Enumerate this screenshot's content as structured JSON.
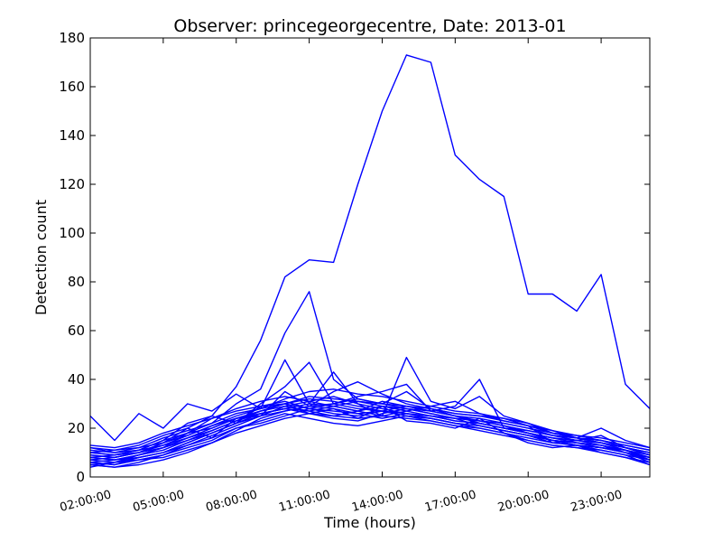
{
  "chart_data": {
    "type": "line",
    "title": "Observer: princegeorgecentre, Date: 2013-01",
    "xlabel": "Time (hours)",
    "ylabel": "Detection count",
    "x": [
      "02:00:00",
      "03:00:00",
      "04:00:00",
      "05:00:00",
      "06:00:00",
      "07:00:00",
      "08:00:00",
      "09:00:00",
      "10:00:00",
      "11:00:00",
      "12:00:00",
      "13:00:00",
      "14:00:00",
      "15:00:00",
      "16:00:00",
      "17:00:00",
      "18:00:00",
      "19:00:00",
      "20:00:00",
      "21:00:00",
      "22:00:00",
      "23:00:00",
      "00:00:00",
      "01:00:00"
    ],
    "x_tick_labels": [
      "02:00:00",
      "05:00:00",
      "08:00:00",
      "11:00:00",
      "14:00:00",
      "17:00:00",
      "20:00:00",
      "23:00:00"
    ],
    "y_ticks": [
      0,
      20,
      40,
      60,
      80,
      100,
      120,
      140,
      160,
      180
    ],
    "ylim": [
      0,
      180
    ],
    "grid": false,
    "line_color": "#0000ff",
    "series": [
      {
        "values": [
          9,
          8,
          10,
          14,
          20,
          25,
          37,
          56,
          82,
          89,
          88,
          120,
          150,
          173,
          170,
          132,
          122,
          115,
          75,
          75,
          68,
          83,
          38,
          28
        ]
      },
      {
        "values": [
          8,
          7,
          9,
          12,
          18,
          22,
          30,
          36,
          59,
          76,
          40,
          32,
          30,
          35,
          28,
          25,
          22,
          20,
          18,
          15,
          14,
          13,
          10,
          8
        ]
      },
      {
        "values": [
          25,
          15,
          26,
          20,
          30,
          27,
          34,
          28,
          48,
          30,
          43,
          30,
          25,
          49,
          31,
          28,
          33,
          25,
          22,
          18,
          16,
          20,
          15,
          12
        ]
      },
      {
        "values": [
          10,
          9,
          11,
          15,
          22,
          25,
          22,
          30,
          37,
          47,
          30,
          33,
          35,
          38,
          27,
          29,
          40,
          20,
          18,
          16,
          14,
          12,
          11,
          9
        ]
      },
      {
        "values": [
          6,
          5,
          8,
          10,
          14,
          18,
          22,
          29,
          30,
          26,
          28,
          24,
          29,
          23,
          22,
          20,
          24,
          18,
          14,
          12,
          13,
          10,
          8,
          6
        ]
      },
      {
        "values": [
          12,
          11,
          13,
          17,
          20,
          16,
          24,
          25,
          35,
          29,
          35,
          39,
          34,
          30,
          28,
          26,
          25,
          24,
          21,
          14,
          15,
          17,
          12,
          10
        ]
      },
      {
        "values": [
          5,
          4,
          6,
          9,
          12,
          15,
          20,
          22,
          25,
          28,
          27,
          26,
          27,
          25,
          24,
          22,
          20,
          18,
          15,
          13,
          12,
          11,
          9,
          7
        ]
      },
      {
        "values": [
          7,
          8,
          10,
          14,
          18,
          20,
          24,
          27,
          30,
          33,
          32,
          31,
          30,
          29,
          27,
          25,
          23,
          21,
          18,
          16,
          15,
          14,
          11,
          8
        ]
      },
      {
        "values": [
          4,
          6,
          7,
          8,
          11,
          14,
          19,
          24,
          27,
          29,
          30,
          28,
          27,
          26,
          25,
          24,
          21,
          19,
          17,
          14,
          13,
          12,
          10,
          6
        ]
      },
      {
        "values": [
          11,
          10,
          12,
          16,
          19,
          22,
          26,
          28,
          32,
          35,
          36,
          34,
          33,
          31,
          29,
          27,
          26,
          23,
          21,
          18,
          17,
          15,
          13,
          11
        ]
      },
      {
        "values": [
          8,
          9,
          11,
          15,
          18,
          24,
          28,
          31,
          33,
          31,
          29,
          27,
          25,
          27,
          29,
          31,
          26,
          24,
          22,
          19,
          16,
          14,
          12,
          9
        ]
      },
      {
        "values": [
          6,
          7,
          9,
          11,
          15,
          18,
          22,
          26,
          28,
          26,
          24,
          23,
          26,
          28,
          27,
          25,
          22,
          20,
          18,
          15,
          14,
          13,
          11,
          7
        ]
      },
      {
        "values": [
          13,
          12,
          14,
          18,
          21,
          24,
          27,
          29,
          31,
          28,
          30,
          32,
          30,
          28,
          26,
          24,
          23,
          21,
          19,
          17,
          15,
          14,
          12,
          10
        ]
      },
      {
        "values": [
          5,
          6,
          8,
          10,
          13,
          17,
          21,
          25,
          29,
          31,
          33,
          30,
          28,
          26,
          24,
          22,
          21,
          19,
          17,
          15,
          13,
          11,
          9,
          5
        ]
      },
      {
        "values": [
          9,
          8,
          10,
          13,
          16,
          20,
          24,
          26,
          28,
          30,
          29,
          27,
          31,
          29,
          27,
          25,
          24,
          22,
          20,
          17,
          16,
          15,
          12,
          9
        ]
      },
      {
        "values": [
          7,
          6,
          9,
          12,
          16,
          19,
          23,
          27,
          30,
          32,
          31,
          29,
          27,
          25,
          23,
          21,
          20,
          18,
          16,
          14,
          13,
          12,
          10,
          8
        ]
      },
      {
        "values": [
          10,
          11,
          12,
          14,
          17,
          21,
          25,
          28,
          30,
          28,
          26,
          25,
          27,
          29,
          28,
          26,
          25,
          23,
          21,
          19,
          17,
          16,
          14,
          12
        ]
      },
      {
        "values": [
          6,
          5,
          7,
          9,
          13,
          16,
          20,
          23,
          26,
          24,
          22,
          21,
          23,
          25,
          24,
          22,
          21,
          19,
          17,
          15,
          13,
          12,
          10,
          7
        ]
      },
      {
        "values": [
          12,
          10,
          11,
          13,
          17,
          21,
          24,
          27,
          29,
          27,
          25,
          27,
          29,
          28,
          26,
          24,
          23,
          22,
          20,
          18,
          16,
          15,
          13,
          11
        ]
      },
      {
        "values": [
          8,
          7,
          8,
          10,
          14,
          18,
          22,
          25,
          27,
          29,
          28,
          26,
          24,
          26,
          25,
          23,
          22,
          20,
          18,
          16,
          15,
          13,
          11,
          8
        ]
      },
      {
        "values": [
          5,
          4,
          5,
          7,
          10,
          14,
          18,
          21,
          24,
          26,
          25,
          24,
          25,
          24,
          23,
          21,
          19,
          17,
          15,
          13,
          12,
          10,
          8,
          5
        ]
      },
      {
        "values": [
          10,
          9,
          10,
          12,
          15,
          19,
          23,
          26,
          28,
          27,
          29,
          31,
          29,
          27,
          25,
          23,
          22,
          20,
          19,
          17,
          16,
          14,
          12,
          10
        ]
      }
    ]
  }
}
